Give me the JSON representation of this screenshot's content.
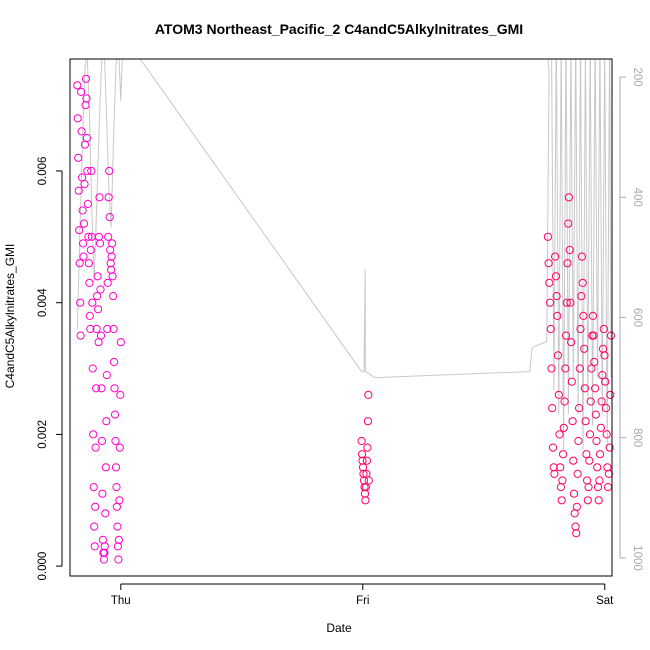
{
  "chart_data": {
    "type": "scatter",
    "title": "ATOM3 Northeast_Pacific_2 C4andC5Alkylnitrates_GMI",
    "xlabel": "Date",
    "ylabel": "C4andC5Alkylnitrates_GMI",
    "x_ticks": [
      "Thu",
      "Fri",
      "Sat"
    ],
    "x_range_days": [
      -0.21,
      2.03
    ],
    "ylim": [
      -0.00015,
      0.0077
    ],
    "y_ticks": [
      0.0,
      0.002,
      0.004,
      0.006
    ],
    "y_tick_labels": [
      "0.000",
      "0.002",
      "0.004",
      "0.006"
    ],
    "y2_ticks": [
      200,
      400,
      600,
      800,
      1000
    ],
    "y2_tick_labels": [
      "200",
      "400",
      "600",
      "800",
      "1000"
    ],
    "y2_range": [
      1030,
      170
    ],
    "y2_reversed": true,
    "grid": false,
    "legend": "none",
    "colors": {
      "points_early": "#ff00cc",
      "points_late": "#ff0066",
      "pressure_line": "#c8c8c8",
      "right_axis": "#aaaaaa"
    },
    "series": [
      {
        "points": [
          [
            -0.18,
            0.0073
          ],
          [
            -0.178,
            0.0068
          ],
          [
            -0.176,
            0.0062
          ],
          [
            -0.174,
            0.0057
          ],
          [
            -0.172,
            0.0051
          ],
          [
            -0.17,
            0.0046
          ],
          [
            -0.168,
            0.004
          ],
          [
            -0.166,
            0.0035
          ],
          [
            -0.164,
            0.0072
          ],
          [
            -0.162,
            0.0066
          ],
          [
            -0.16,
            0.0059
          ],
          [
            -0.158,
            0.0054
          ],
          [
            -0.156,
            0.0049
          ],
          [
            -0.154,
            0.0047
          ],
          [
            -0.152,
            0.0052
          ],
          [
            -0.15,
            0.0058
          ],
          [
            -0.148,
            0.0064
          ],
          [
            -0.146,
            0.007
          ],
          [
            -0.144,
            0.0074
          ],
          [
            -0.142,
            0.0071
          ],
          [
            -0.14,
            0.0065
          ],
          [
            -0.138,
            0.006
          ],
          [
            -0.136,
            0.0055
          ],
          [
            -0.134,
            0.005
          ],
          [
            -0.132,
            0.0046
          ],
          [
            -0.13,
            0.0043
          ],
          [
            -0.128,
            0.0038
          ],
          [
            -0.126,
            0.0036
          ],
          [
            -0.124,
            0.0048
          ],
          [
            -0.122,
            0.006
          ],
          [
            -0.12,
            0.005
          ],
          [
            -0.118,
            0.004
          ],
          [
            -0.116,
            0.003
          ],
          [
            -0.114,
            0.002
          ],
          [
            -0.112,
            0.0012
          ],
          [
            -0.11,
            0.0006
          ],
          [
            -0.108,
            0.0003
          ],
          [
            -0.106,
            0.0009
          ],
          [
            -0.104,
            0.0018
          ],
          [
            -0.102,
            0.0027
          ],
          [
            -0.1,
            0.0036
          ],
          [
            -0.098,
            0.0041
          ],
          [
            -0.096,
            0.0044
          ],
          [
            -0.094,
            0.0039
          ],
          [
            -0.092,
            0.0034
          ],
          [
            -0.09,
            0.005
          ],
          [
            -0.088,
            0.0056
          ],
          [
            -0.086,
            0.0049
          ],
          [
            -0.084,
            0.0042
          ],
          [
            -0.082,
            0.0035
          ],
          [
            -0.08,
            0.0027
          ],
          [
            -0.078,
            0.0019
          ],
          [
            -0.076,
            0.0011
          ],
          [
            -0.074,
            0.0004
          ],
          [
            -0.072,
            0.0002
          ],
          [
            -0.07,
            0.0001
          ],
          [
            -0.068,
            0.0002
          ],
          [
            -0.066,
            0.0003
          ],
          [
            -0.064,
            0.0008
          ],
          [
            -0.062,
            0.0015
          ],
          [
            -0.06,
            0.0022
          ],
          [
            -0.058,
            0.0029
          ],
          [
            -0.056,
            0.0036
          ],
          [
            -0.054,
            0.0043
          ],
          [
            -0.052,
            0.005
          ],
          [
            -0.05,
            0.0056
          ],
          [
            -0.048,
            0.006
          ],
          [
            -0.046,
            0.0053
          ],
          [
            -0.044,
            0.0048
          ],
          [
            -0.042,
            0.0046
          ],
          [
            -0.04,
            0.0045
          ],
          [
            -0.038,
            0.0047
          ],
          [
            -0.036,
            0.0049
          ],
          [
            -0.034,
            0.0044
          ],
          [
            -0.032,
            0.0041
          ],
          [
            -0.03,
            0.0036
          ],
          [
            -0.028,
            0.0031
          ],
          [
            -0.026,
            0.0027
          ],
          [
            -0.024,
            0.0023
          ],
          [
            -0.022,
            0.0019
          ],
          [
            -0.02,
            0.0015
          ],
          [
            -0.018,
            0.0012
          ],
          [
            -0.016,
            0.0009
          ],
          [
            -0.014,
            0.0006
          ],
          [
            -0.012,
            0.0003
          ],
          [
            -0.01,
            0.0001
          ],
          [
            -0.008,
            0.0004
          ],
          [
            -0.006,
            0.001
          ],
          [
            -0.004,
            0.0018
          ],
          [
            -0.002,
            0.0026
          ],
          [
            0.0,
            0.0034
          ]
        ]
      },
      {
        "points": [
          [
            0.995,
            0.0019
          ],
          [
            0.997,
            0.0017
          ],
          [
            0.999,
            0.0016
          ],
          [
            1.001,
            0.0015
          ],
          [
            1.003,
            0.0014
          ],
          [
            1.005,
            0.0013
          ],
          [
            1.007,
            0.0012
          ],
          [
            1.009,
            0.0011
          ],
          [
            1.011,
            0.001
          ],
          [
            1.013,
            0.0012
          ],
          [
            1.015,
            0.0014
          ],
          [
            1.017,
            0.0016
          ],
          [
            1.019,
            0.0018
          ],
          [
            1.021,
            0.0022
          ],
          [
            1.023,
            0.0026
          ],
          [
            1.025,
            0.0013
          ]
        ]
      },
      {
        "points": [
          [
            1.765,
            0.005
          ],
          [
            1.768,
            0.0046
          ],
          [
            1.771,
            0.0043
          ],
          [
            1.774,
            0.004
          ],
          [
            1.777,
            0.0036
          ],
          [
            1.78,
            0.003
          ],
          [
            1.783,
            0.0024
          ],
          [
            1.786,
            0.0018
          ],
          [
            1.789,
            0.0015
          ],
          [
            1.792,
            0.0014
          ],
          [
            1.795,
            0.0047
          ],
          [
            1.798,
            0.0044
          ],
          [
            1.801,
            0.0041
          ],
          [
            1.804,
            0.0038
          ],
          [
            1.807,
            0.0032
          ],
          [
            1.81,
            0.0026
          ],
          [
            1.813,
            0.002
          ],
          [
            1.816,
            0.0015
          ],
          [
            1.819,
            0.0012
          ],
          [
            1.822,
            0.001
          ],
          [
            1.825,
            0.0013
          ],
          [
            1.828,
            0.0017
          ],
          [
            1.831,
            0.0021
          ],
          [
            1.834,
            0.0025
          ],
          [
            1.837,
            0.003
          ],
          [
            1.84,
            0.0035
          ],
          [
            1.843,
            0.004
          ],
          [
            1.846,
            0.0046
          ],
          [
            1.849,
            0.0052
          ],
          [
            1.852,
            0.0056
          ],
          [
            1.855,
            0.0048
          ],
          [
            1.858,
            0.004
          ],
          [
            1.861,
            0.0034
          ],
          [
            1.864,
            0.0028
          ],
          [
            1.867,
            0.0022
          ],
          [
            1.87,
            0.0016
          ],
          [
            1.873,
            0.0011
          ],
          [
            1.876,
            0.0008
          ],
          [
            1.879,
            0.0006
          ],
          [
            1.882,
            0.0005
          ],
          [
            1.885,
            0.0009
          ],
          [
            1.888,
            0.0014
          ],
          [
            1.891,
            0.0019
          ],
          [
            1.894,
            0.0024
          ],
          [
            1.897,
            0.003
          ],
          [
            1.9,
            0.0036
          ],
          [
            1.903,
            0.0041
          ],
          [
            1.906,
            0.0047
          ],
          [
            1.909,
            0.0043
          ],
          [
            1.912,
            0.0038
          ],
          [
            1.915,
            0.0033
          ],
          [
            1.918,
            0.0027
          ],
          [
            1.921,
            0.0022
          ],
          [
            1.924,
            0.0017
          ],
          [
            1.927,
            0.0013
          ],
          [
            1.93,
            0.001
          ],
          [
            1.933,
            0.0012
          ],
          [
            1.936,
            0.0016
          ],
          [
            1.939,
            0.002
          ],
          [
            1.942,
            0.0025
          ],
          [
            1.945,
            0.003
          ],
          [
            1.948,
            0.0035
          ],
          [
            1.951,
            0.0038
          ],
          [
            1.954,
            0.0035
          ],
          [
            1.957,
            0.0031
          ],
          [
            1.96,
            0.0027
          ],
          [
            1.963,
            0.0023
          ],
          [
            1.966,
            0.0019
          ],
          [
            1.969,
            0.0015
          ],
          [
            1.972,
            0.0012
          ],
          [
            1.975,
            0.001
          ],
          [
            1.978,
            0.0013
          ],
          [
            1.981,
            0.0017
          ],
          [
            1.984,
            0.0021
          ],
          [
            1.987,
            0.0025
          ],
          [
            1.99,
            0.0029
          ],
          [
            1.993,
            0.0033
          ],
          [
            1.996,
            0.0036
          ],
          [
            1.999,
            0.0032
          ],
          [
            2.002,
            0.0028
          ],
          [
            2.005,
            0.0024
          ],
          [
            2.008,
            0.002
          ],
          [
            2.011,
            0.0015
          ],
          [
            2.014,
            0.0012
          ],
          [
            2.017,
            0.0014
          ],
          [
            2.02,
            0.0018
          ],
          [
            2.023,
            0.0026
          ],
          [
            2.026,
            0.0035
          ]
        ]
      }
    ],
    "pressure_series": {
      "points": [
        [
          -0.18,
          620
        ],
        [
          -0.17,
          470
        ],
        [
          -0.16,
          330
        ],
        [
          -0.15,
          200
        ],
        [
          -0.14,
          150
        ],
        [
          -0.13,
          260
        ],
        [
          -0.12,
          420
        ],
        [
          -0.11,
          540
        ],
        [
          -0.1,
          420
        ],
        [
          -0.09,
          290
        ],
        [
          -0.08,
          180
        ],
        [
          -0.07,
          140
        ],
        [
          -0.06,
          250
        ],
        [
          -0.05,
          380
        ],
        [
          -0.04,
          450
        ],
        [
          -0.03,
          300
        ],
        [
          -0.02,
          180
        ],
        [
          -0.01,
          140
        ],
        [
          0.0,
          240
        ],
        [
          0.01,
          130
        ],
        [
          0.995,
          690
        ],
        [
          1.005,
          690
        ],
        [
          1.01,
          520
        ],
        [
          1.011,
          690
        ],
        [
          1.05,
          700
        ],
        [
          1.69,
          690
        ],
        [
          1.7,
          650
        ],
        [
          1.76,
          640
        ],
        [
          1.77,
          190
        ],
        [
          1.76,
          150
        ],
        [
          1.3,
          120
        ],
        [
          1.765,
          160
        ],
        [
          1.78,
          140
        ],
        [
          1.79,
          720
        ],
        [
          1.8,
          130
        ],
        [
          1.81,
          760
        ],
        [
          1.82,
          140
        ],
        [
          1.83,
          820
        ],
        [
          1.84,
          130
        ],
        [
          1.85,
          760
        ],
        [
          1.86,
          140
        ],
        [
          1.87,
          700
        ],
        [
          1.88,
          130
        ],
        [
          1.89,
          760
        ],
        [
          1.9,
          140
        ],
        [
          1.91,
          820
        ],
        [
          1.92,
          150
        ],
        [
          1.93,
          740
        ],
        [
          1.94,
          140
        ],
        [
          1.95,
          780
        ],
        [
          1.96,
          130
        ],
        [
          1.97,
          700
        ],
        [
          1.98,
          140
        ],
        [
          1.99,
          760
        ],
        [
          2.0,
          150
        ],
        [
          2.01,
          820
        ],
        [
          2.02,
          140
        ],
        [
          2.026,
          700
        ]
      ]
    }
  }
}
